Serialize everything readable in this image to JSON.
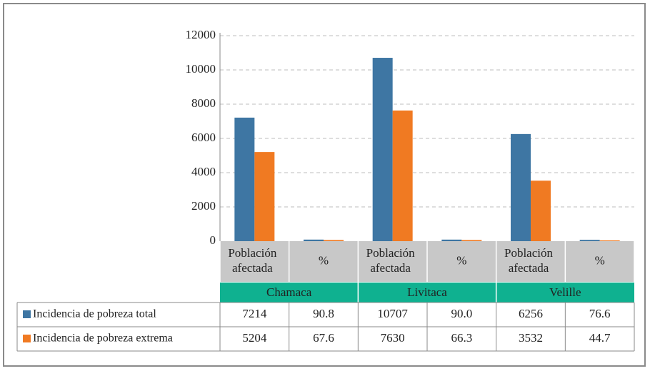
{
  "chart_data": {
    "type": "bar",
    "ylim": [
      0,
      12000
    ],
    "yticks": [
      "0",
      "2000",
      "4000",
      "6000",
      "8000",
      "10000",
      "12000"
    ],
    "grid": true,
    "legend_placement": "table-rows-left",
    "groups": [
      "Chamaca",
      "Livitaca",
      "Velille"
    ],
    "subcategories": [
      "Población afectada",
      "%"
    ],
    "categories": [
      "Población afectada",
      "%",
      "Población afectada",
      "%",
      "Población afectada",
      "%"
    ],
    "series": [
      {
        "name": "Incidencia de pobreza total",
        "color": "#3e76a3",
        "values": [
          7214,
          90.8,
          10707,
          90.0,
          6256,
          76.6
        ],
        "labels": [
          "7214",
          "90.8",
          "10707",
          "90.0",
          "6256",
          "76.6"
        ]
      },
      {
        "name": "Incidencia de pobreza extrema",
        "color": "#f07a22",
        "values": [
          5204,
          67.6,
          7630,
          66.3,
          3532,
          44.7
        ],
        "labels": [
          "5204",
          "67.6",
          "7630",
          "66.3",
          "3532",
          "44.7"
        ]
      }
    ],
    "colors": {
      "category_row_bg": "#c8c8c8",
      "group_row_bg": "#0fb190",
      "grid": "#bdbdbd",
      "axis": "#8a8a8a"
    }
  }
}
